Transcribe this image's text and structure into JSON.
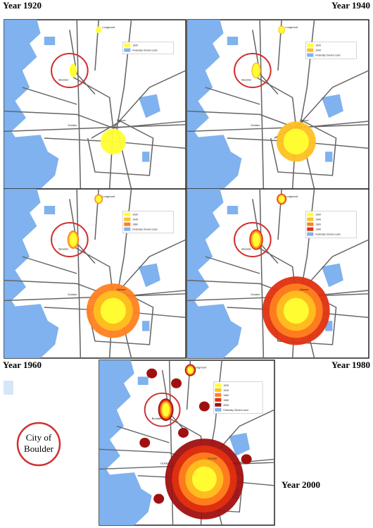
{
  "maps": [
    {
      "title": "Year 1920",
      "places": [
        "Longmont",
        "Boulder",
        "Golden",
        "Denver"
      ],
      "legend": [
        {
          "label": "1920",
          "color": "#ffff33"
        },
        {
          "label": "Federally Owned Land",
          "color": "#7fb2ee"
        }
      ]
    },
    {
      "title": "Year 1940",
      "places": [
        "Longmont",
        "Boulder",
        "Golden",
        "Denver"
      ],
      "legend": [
        {
          "label": "1920",
          "color": "#ffff33"
        },
        {
          "label": "1940",
          "color": "#ffc020"
        },
        {
          "label": "Federally Owned Land",
          "color": "#7fb2ee"
        }
      ]
    },
    {
      "title": "Year 1960",
      "places": [
        "Longmont",
        "Boulder",
        "Golden",
        "Denver"
      ],
      "legend": [
        {
          "label": "1920",
          "color": "#ffff33"
        },
        {
          "label": "1940",
          "color": "#ffc020"
        },
        {
          "label": "1960",
          "color": "#ff8020"
        },
        {
          "label": "Federally Owned Land",
          "color": "#7fb2ee"
        }
      ]
    },
    {
      "title": "Year 1980",
      "places": [
        "Longmont",
        "Boulder",
        "Golden",
        "Denver"
      ],
      "legend": [
        {
          "label": "1920",
          "color": "#ffff33"
        },
        {
          "label": "1940",
          "color": "#ffc020"
        },
        {
          "label": "1960",
          "color": "#ff8020"
        },
        {
          "label": "1980",
          "color": "#e03010"
        },
        {
          "label": "Federally Owned Land",
          "color": "#7fb2ee"
        }
      ]
    },
    {
      "title": "Year 2000",
      "places": [
        "Longmont",
        "Boulder",
        "Golden",
        "Denver"
      ],
      "legend": [
        {
          "label": "1920",
          "color": "#ffff33"
        },
        {
          "label": "1940",
          "color": "#ffc020"
        },
        {
          "label": "1960",
          "color": "#ff8020"
        },
        {
          "label": "1980",
          "color": "#e03010"
        },
        {
          "label": "2000",
          "color": "#a01010"
        },
        {
          "label": "Federally Owned Land",
          "color": "#7fb2ee"
        }
      ]
    }
  ],
  "callout": [
    "City of",
    "Boulder"
  ]
}
